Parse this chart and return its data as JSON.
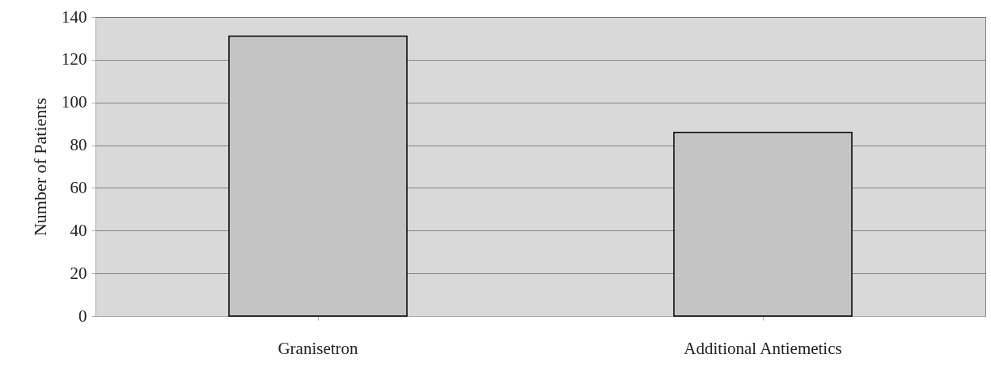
{
  "chart_data": {
    "type": "bar",
    "ylabel": "Number of Patients",
    "categories": [
      "Granisetron",
      "Additional Antiemetics"
    ],
    "values": [
      131,
      86
    ],
    "color": "#c4c4c4",
    "ylim": [
      0,
      140
    ],
    "yticks": [
      0,
      20,
      40,
      60,
      80,
      100,
      120,
      140
    ],
    "grid": "y"
  }
}
